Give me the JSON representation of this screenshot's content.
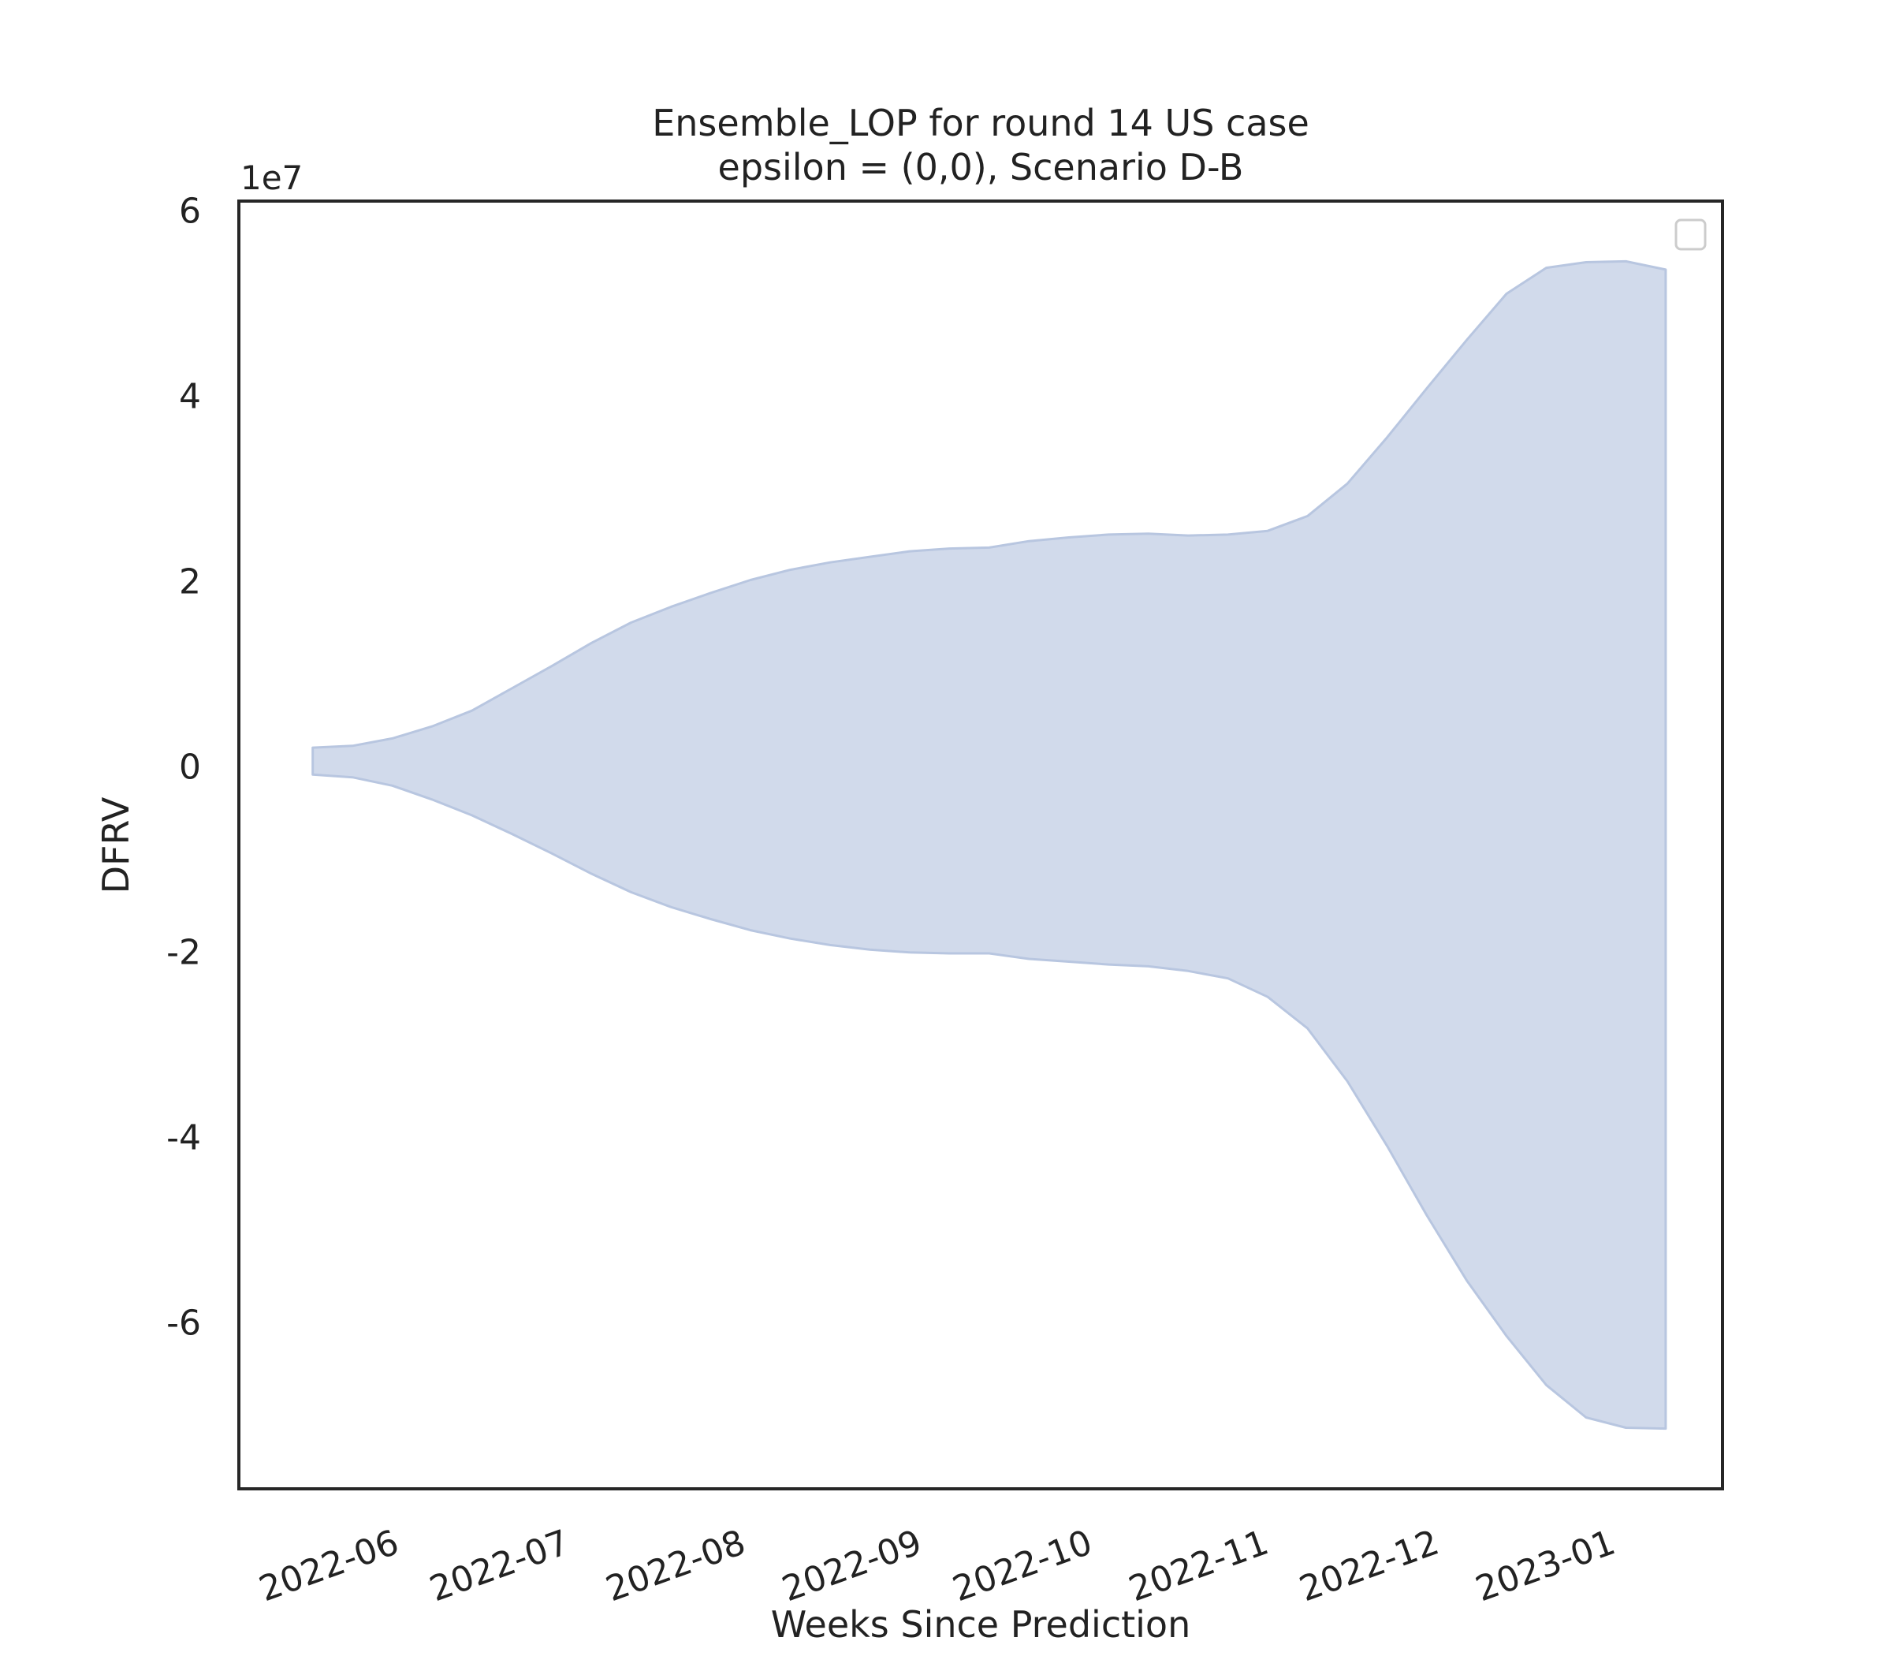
{
  "chart_data": {
    "type": "area",
    "title": "Ensemble_LOP for round 14 US case",
    "subtitle": "epsilon = (0,0), Scenario D-B",
    "xlabel": "Weeks Since Prediction",
    "ylabel": "DFRV",
    "y_scale_label": "1e7",
    "y_scale_factor": 10000000,
    "xlim": [
      "2022-05-05",
      "2023-01-21"
    ],
    "ylim": [
      -78000000,
      61000000
    ],
    "x_ticks": [
      "2022-06-01",
      "2022-07-01",
      "2022-08-01",
      "2022-09-01",
      "2022-10-01",
      "2022-11-01",
      "2022-12-01",
      "2023-01-01"
    ],
    "x_tick_labels": [
      "2022-06",
      "2022-07",
      "2022-08",
      "2022-09",
      "2022-10",
      "2022-11",
      "2022-12",
      "2023-01"
    ],
    "y_ticks": [
      -60000000,
      -40000000,
      -20000000,
      0,
      20000000,
      40000000,
      60000000
    ],
    "y_tick_labels": [
      "-6",
      "-4",
      "-2",
      "0",
      "2",
      "4",
      "6"
    ],
    "grid": false,
    "legend": {
      "position": "top-right",
      "entries": []
    },
    "colors": {
      "fill": "#d1daeb",
      "edge": "#b8c6e0"
    },
    "x": [
      "2022-05-18",
      "2022-05-25",
      "2022-06-01",
      "2022-06-08",
      "2022-06-15",
      "2022-06-22",
      "2022-06-29",
      "2022-07-06",
      "2022-07-13",
      "2022-07-20",
      "2022-07-27",
      "2022-08-03",
      "2022-08-10",
      "2022-08-17",
      "2022-08-24",
      "2022-08-31",
      "2022-09-07",
      "2022-09-14",
      "2022-09-21",
      "2022-09-28",
      "2022-10-05",
      "2022-10-12",
      "2022-10-19",
      "2022-10-26",
      "2022-11-02",
      "2022-11-09",
      "2022-11-16",
      "2022-11-23",
      "2022-11-30",
      "2022-12-07",
      "2022-12-14",
      "2022-12-21",
      "2022-12-28",
      "2023-01-04",
      "2023-01-11"
    ],
    "series": [
      {
        "upper": [
          2000000,
          2200000,
          3000000,
          4300000,
          6000000,
          8400000,
          10800000,
          13300000,
          15500000,
          17200000,
          18700000,
          20100000,
          21200000,
          22000000,
          22600000,
          23200000,
          23500000,
          23600000,
          24300000,
          24700000,
          25000000,
          25100000,
          24900000,
          25000000,
          25400000,
          27000000,
          30500000,
          35500000,
          40800000,
          46000000,
          51000000,
          53800000,
          54400000,
          54500000,
          53600000
        ],
        "lower": [
          -900000,
          -1200000,
          -2100000,
          -3600000,
          -5300000,
          -7300000,
          -9400000,
          -11600000,
          -13600000,
          -15200000,
          -16500000,
          -17700000,
          -18600000,
          -19300000,
          -19800000,
          -20100000,
          -20200000,
          -20200000,
          -20800000,
          -21100000,
          -21400000,
          -21600000,
          -22100000,
          -22900000,
          -24900000,
          -28300000,
          -34000000,
          -41000000,
          -48500000,
          -55500000,
          -61500000,
          -66800000,
          -70300000,
          -71400000,
          -71500000
        ]
      }
    ]
  }
}
